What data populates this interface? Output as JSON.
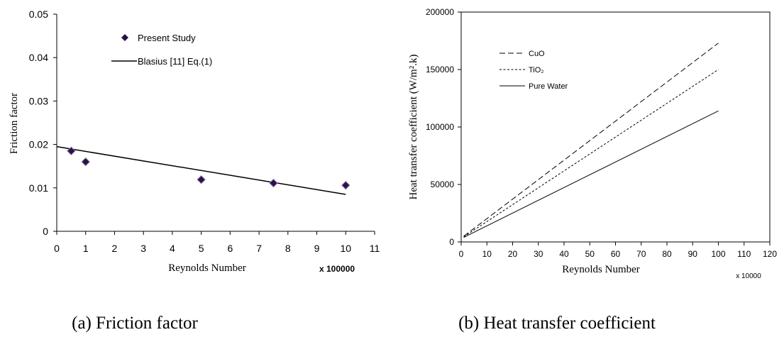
{
  "chart_data": [
    {
      "type": "scatter",
      "caption": "(a) Friction factor",
      "xlabel": "Reynolds Number",
      "ylabel": "Friction factor",
      "x_multiplier_label": "x 100000",
      "xlim": [
        0,
        11
      ],
      "ylim": [
        0,
        0.05
      ],
      "x_ticks": [
        0,
        1,
        2,
        3,
        4,
        5,
        6,
        7,
        8,
        9,
        10,
        11
      ],
      "y_ticks": [
        0,
        0.01,
        0.02,
        0.03,
        0.04,
        0.05
      ],
      "y_tick_labels": [
        "0",
        "0.01",
        "0.02",
        "0.03",
        "0.04",
        "0.05"
      ],
      "grid": false,
      "legend_position": "top-left",
      "series": [
        {
          "name": "Present Study",
          "kind": "scatter",
          "marker": "diamond",
          "color": "#2a1245",
          "x": [
            0.5,
            1,
            5,
            7.5,
            10
          ],
          "y": [
            0.0185,
            0.016,
            0.0119,
            0.0111,
            0.0106
          ]
        },
        {
          "name": "Blasius [11] Eq.(1)",
          "kind": "line",
          "color": "#000000",
          "x": [
            0,
            10
          ],
          "y": [
            0.0195,
            0.0085
          ]
        }
      ]
    },
    {
      "type": "line",
      "caption": "(b) Heat transfer coefficient",
      "xlabel": "Reynolds Number",
      "ylabel": "Heat transfer coefficient (W/m².k)",
      "x_multiplier_label": "x 10000",
      "xlim": [
        0,
        120
      ],
      "ylim": [
        0,
        200000
      ],
      "x_ticks": [
        0,
        10,
        20,
        30,
        40,
        50,
        60,
        70,
        80,
        90,
        100,
        110,
        120
      ],
      "y_ticks": [
        0,
        50000,
        100000,
        150000,
        200000
      ],
      "grid": false,
      "legend_position": "top-left",
      "series": [
        {
          "name": "CuO",
          "dash": "dashed",
          "color": "#000000",
          "x": [
            1,
            100
          ],
          "y": [
            5000,
            173000
          ]
        },
        {
          "name": "TiO₂",
          "dash": "dotted",
          "color": "#000000",
          "x": [
            1,
            100
          ],
          "y": [
            4500,
            150000
          ]
        },
        {
          "name": "Pure Water",
          "dash": "solid",
          "color": "#000000",
          "x": [
            1,
            100
          ],
          "y": [
            4000,
            114000
          ]
        }
      ]
    }
  ]
}
